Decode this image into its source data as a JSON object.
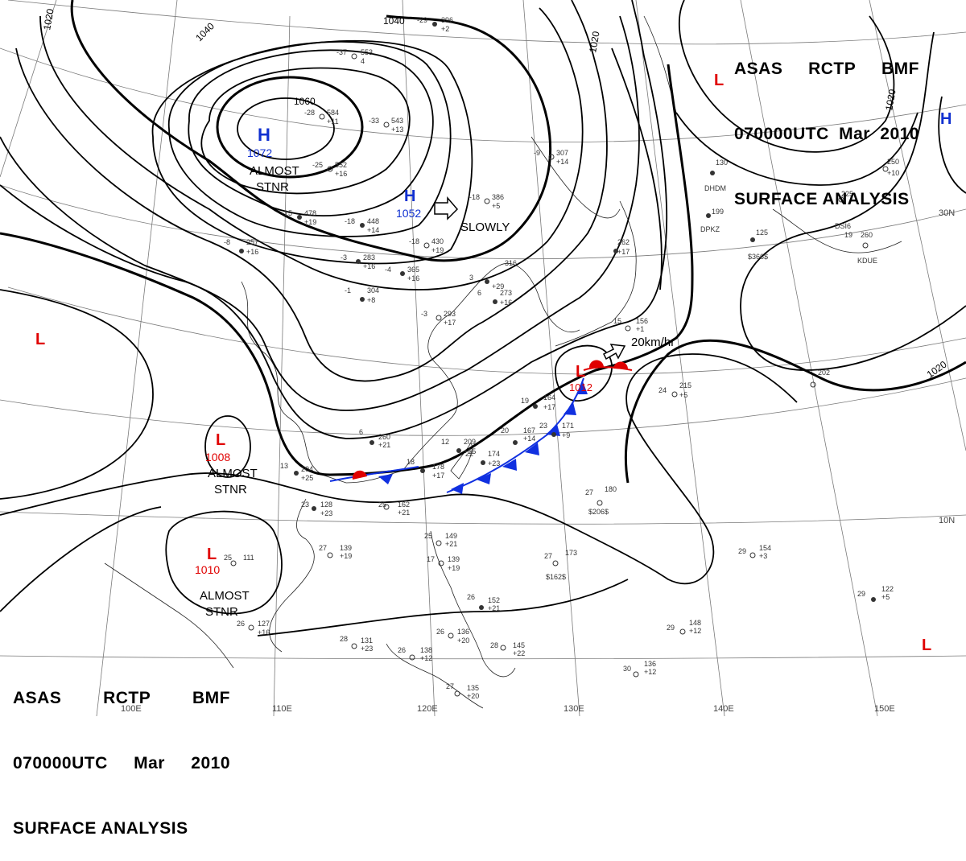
{
  "header": {
    "agency": "ASAS",
    "station": "RCTP",
    "office": "BMF",
    "datetime": "070000UTC",
    "month": "Mar",
    "year": "2010",
    "title": "SURFACE ANALYSIS"
  },
  "colors": {
    "high": "#1030d0",
    "low": "#e00000",
    "isobar": "#000000",
    "cold_front": "#1030e0",
    "warm_front": "#e00000",
    "grid": "#777777"
  },
  "pressure_centers": [
    {
      "type": "H",
      "value": "1072",
      "note": "ALMOST STNR",
      "lon": 94,
      "lat": 51
    },
    {
      "type": "H",
      "value": "1052",
      "note": "SLOWLY",
      "lon": 114,
      "lat": 41
    },
    {
      "type": "L",
      "value": "1012",
      "note": "20km/hr",
      "lon": 132,
      "lat": 31
    },
    {
      "type": "L",
      "value": "1008",
      "note": "ALMOST STNR",
      "lon": 103,
      "lat": 24
    },
    {
      "type": "L",
      "value": "1010",
      "note": "ALMOST STNR",
      "lon": 103,
      "lat": 12
    },
    {
      "type": "L",
      "value": "",
      "note": "",
      "lon": 150,
      "lat": 51
    },
    {
      "type": "H",
      "value": "",
      "note": "",
      "lon": 172,
      "lat": 43
    },
    {
      "type": "L",
      "value": "",
      "note": "",
      "lon": 82,
      "lat": 33
    },
    {
      "type": "L",
      "value": "",
      "note": "",
      "lon": 155,
      "lat": 5
    }
  ],
  "isobar_labels": [
    "1020",
    "1040",
    "1060",
    "1040",
    "1020",
    "1020",
    "1020"
  ],
  "grid_labels": {
    "longitude": [
      "100E",
      "110E",
      "120E",
      "130E",
      "140E",
      "150E"
    ],
    "latitude": [
      "30N",
      "10N"
    ]
  },
  "stations": [
    {
      "id": "s1",
      "p": "396",
      "t": "-29",
      "d": "+2"
    },
    {
      "id": "s2",
      "p": "553",
      "t": "-37",
      "d": "4"
    },
    {
      "id": "s3",
      "p": "584",
      "t": "-28",
      "d": "+11"
    },
    {
      "id": "s4",
      "p": "543",
      "t": "-33",
      "d": "+13"
    },
    {
      "id": "s5",
      "p": "552",
      "t": "-25",
      "d": "+16"
    },
    {
      "id": "s6",
      "p": "478",
      "t": "-15",
      "d": "+19"
    },
    {
      "id": "s7",
      "p": "448",
      "t": "-18",
      "d": "+14"
    },
    {
      "id": "s8",
      "p": "386",
      "t": "-18",
      "d": "+5"
    },
    {
      "id": "s9",
      "p": "430",
      "t": "-18",
      "d": "+19"
    },
    {
      "id": "s10",
      "p": "307",
      "t": "-9",
      "d": "+14"
    },
    {
      "id": "s11",
      "p": "365",
      "t": "-4",
      "d": "+16"
    },
    {
      "id": "s12",
      "p": "283",
      "t": "-3",
      "d": "+16"
    },
    {
      "id": "s13",
      "p": "316",
      "t": "3",
      "d": "+29"
    },
    {
      "id": "s14",
      "p": "273",
      "t": "6",
      "d": "+16"
    },
    {
      "id": "s15",
      "p": "304",
      "t": "-1",
      "d": "+8"
    },
    {
      "id": "s16",
      "p": "293",
      "t": "-3",
      "d": "+17"
    },
    {
      "id": "s17",
      "p": "257",
      "t": "-8",
      "d": "+16"
    },
    {
      "id": "s18",
      "p": "156",
      "t": "15",
      "d": "+1"
    },
    {
      "id": "s19",
      "p": "215",
      "t": "24",
      "d": "+5"
    },
    {
      "id": "s20",
      "p": "164",
      "t": "19",
      "d": "+17"
    },
    {
      "id": "s21",
      "p": "171",
      "t": "23",
      "d": "+9"
    },
    {
      "id": "s22",
      "p": "167",
      "t": "20",
      "d": "+14"
    },
    {
      "id": "s23",
      "p": "209",
      "t": "12",
      "d": "+15"
    },
    {
      "id": "s24",
      "p": "174",
      "t": "22",
      "d": "+23"
    },
    {
      "id": "s25",
      "p": "178",
      "t": "18",
      "d": "+17"
    },
    {
      "id": "s26",
      "p": "260",
      "t": "6",
      "d": "+21"
    },
    {
      "id": "s27",
      "p": "204",
      "t": "13",
      "d": "+25"
    },
    {
      "id": "s28",
      "p": "128",
      "t": "23",
      "d": "+23"
    },
    {
      "id": "s29",
      "p": "162",
      "t": "25",
      "d": "+21"
    },
    {
      "id": "s30",
      "p": "180",
      "t": "27",
      "d": "$206$"
    },
    {
      "id": "s31",
      "p": "173",
      "t": "27",
      "d": "$162$"
    },
    {
      "id": "s32",
      "p": "154",
      "t": "29",
      "d": "+3"
    },
    {
      "id": "s33",
      "p": "139",
      "t": "27",
      "d": "+19"
    },
    {
      "id": "s34",
      "p": "149",
      "t": "25",
      "d": "+21"
    },
    {
      "id": "s35",
      "p": "139",
      "t": "17",
      "d": "+19"
    },
    {
      "id": "s36",
      "p": "152",
      "t": "26",
      "d": "+21"
    },
    {
      "id": "s37",
      "p": "111",
      "t": "25",
      "d": ""
    },
    {
      "id": "s38",
      "p": "127",
      "t": "26",
      "d": "+16"
    },
    {
      "id": "s39",
      "p": "131",
      "t": "28",
      "d": "+23"
    },
    {
      "id": "s40",
      "p": "138",
      "t": "26",
      "d": "+12"
    },
    {
      "id": "s41",
      "p": "136",
      "t": "26",
      "d": "+20"
    },
    {
      "id": "s42",
      "p": "145",
      "t": "28",
      "d": "+22"
    },
    {
      "id": "s43",
      "p": "135",
      "t": "27",
      "d": "+20"
    },
    {
      "id": "s44",
      "p": "136",
      "t": "30",
      "d": "+12"
    },
    {
      "id": "s45",
      "p": "148",
      "t": "29",
      "d": "+12"
    },
    {
      "id": "s46",
      "p": "122",
      "t": "29",
      "d": "+5"
    },
    {
      "id": "s47",
      "p": "130",
      "t": "",
      "d": "DHDM"
    },
    {
      "id": "s48",
      "p": "199",
      "t": "",
      "d": "DPKZ"
    },
    {
      "id": "s49",
      "p": "125",
      "t": "",
      "d": "$366$"
    },
    {
      "id": "s50",
      "p": "260",
      "t": "19",
      "d": "KDUE"
    },
    {
      "id": "s51",
      "p": "250",
      "t": "",
      "d": "+10"
    },
    {
      "id": "s52",
      "p": "225",
      "t": "",
      "d": "DSI6"
    },
    {
      "id": "s53",
      "p": "202",
      "t": "",
      "d": ""
    },
    {
      "id": "s54",
      "p": "262",
      "t": "",
      "d": "+17"
    }
  ]
}
